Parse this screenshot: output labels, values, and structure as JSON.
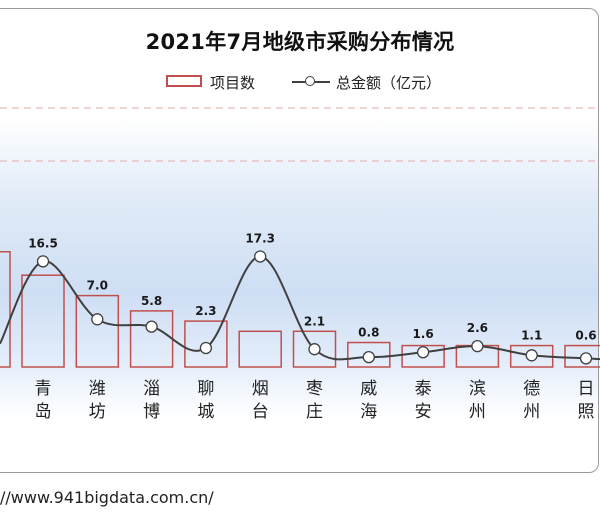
{
  "chart_data": {
    "type": "bar",
    "title": "2021年7月地级市采购分布情况",
    "categories": [
      "青岛",
      "潍坊",
      "淄博",
      "聊城",
      "烟台",
      "枣庄",
      "威海",
      "泰安",
      "滨州",
      "德州",
      "日照"
    ],
    "category_chars": [
      [
        "青",
        "岛"
      ],
      [
        "潍",
        "坊"
      ],
      [
        "淄",
        "博"
      ],
      [
        "聊",
        "城"
      ],
      [
        "烟",
        "台"
      ],
      [
        "枣",
        "庄"
      ],
      [
        "威",
        "海"
      ],
      [
        "泰",
        "安"
      ],
      [
        "滨",
        "州"
      ],
      [
        "德",
        "州"
      ],
      [
        "日",
        "照"
      ]
    ],
    "series": [
      {
        "name": "项目数",
        "type": "bar",
        "color": "#c0504d",
        "values": [
          9,
          7,
          5.5,
          4.5,
          3.5,
          3.5,
          2.4,
          2.1,
          2.1,
          2.1,
          2.1
        ]
      },
      {
        "name": "总金额（亿元）",
        "type": "line",
        "color": "#404040",
        "values": [
          16.5,
          7.0,
          5.8,
          2.3,
          17.3,
          2.1,
          0.8,
          1.6,
          2.6,
          1.1,
          0.6
        ]
      }
    ],
    "value_labels": [
      "16.5",
      "7.0",
      "5.8",
      "2.3",
      "17.3",
      "2.1",
      "0.8",
      "1.6",
      "2.6",
      "1.1",
      "0.6"
    ],
    "left_offscreen": {
      "bar_value": 11.3,
      "line_value": 3.0
    },
    "grid": "dashed horizontal",
    "legend_position": "top"
  },
  "legend": {
    "bar_label": "项目数",
    "line_label": "总金额（亿元）"
  },
  "footer": {
    "url": "//www.941bigdata.com.cn/"
  }
}
